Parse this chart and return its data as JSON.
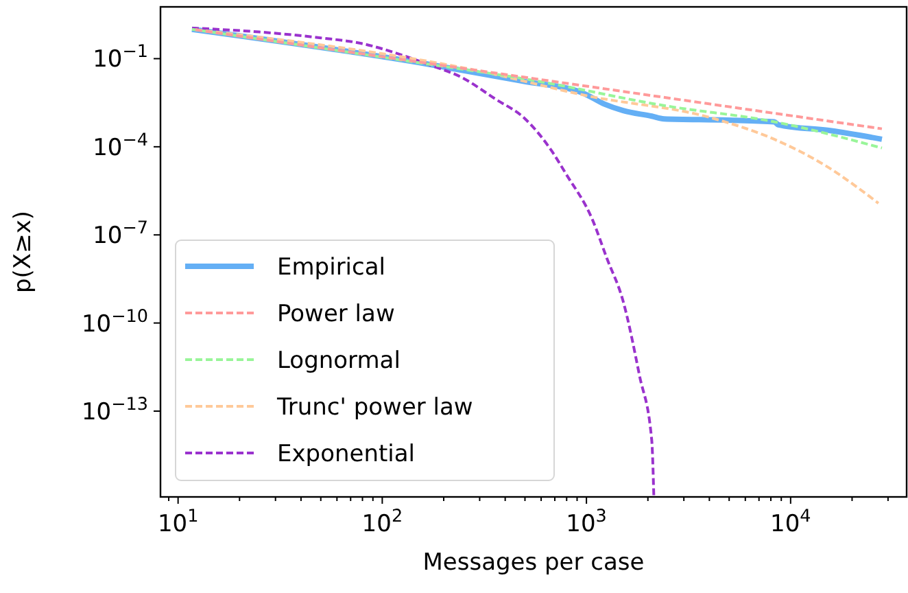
{
  "chart_data": {
    "type": "line",
    "xlabel": "Messages per case",
    "ylabel": "p(X≥x)",
    "log": "xy",
    "legend": "bottom left",
    "xlim": [
      8.2,
      37000
    ],
    "ylim": [
      1.2e-16,
      5.8
    ],
    "xticks": [
      {
        "value": 9,
        "label": null
      },
      {
        "value": 10,
        "label": "10$^{1}$"
      },
      {
        "value": 20,
        "label": null
      },
      {
        "value": 30,
        "label": null
      },
      {
        "value": 40,
        "label": null
      },
      {
        "value": 50,
        "label": null
      },
      {
        "value": 60,
        "label": null
      },
      {
        "value": 70,
        "label": null
      },
      {
        "value": 80,
        "label": null
      },
      {
        "value": 90,
        "label": null
      },
      {
        "value": 100,
        "label": "10$^{2}$"
      },
      {
        "value": 200,
        "label": null
      },
      {
        "value": 300,
        "label": null
      },
      {
        "value": 400,
        "label": null
      },
      {
        "value": 500,
        "label": null
      },
      {
        "value": 600,
        "label": null
      },
      {
        "value": 700,
        "label": null
      },
      {
        "value": 800,
        "label": null
      },
      {
        "value": 900,
        "label": null
      },
      {
        "value": 1000,
        "label": "10$^{3}$"
      },
      {
        "value": 2000,
        "label": null
      },
      {
        "value": 3000,
        "label": null
      },
      {
        "value": 4000,
        "label": null
      },
      {
        "value": 5000,
        "label": null
      },
      {
        "value": 6000,
        "label": null
      },
      {
        "value": 7000,
        "label": null
      },
      {
        "value": 8000,
        "label": null
      },
      {
        "value": 9000,
        "label": null
      },
      {
        "value": 10000,
        "label": "10$^{4}$"
      },
      {
        "value": 20000,
        "label": null
      },
      {
        "value": 30000,
        "label": null
      }
    ],
    "yticks": [
      {
        "value": 1e-13,
        "label": "10$^{−13}$"
      },
      {
        "value": 1e-10,
        "label": "10$^{−10}$"
      },
      {
        "value": 1e-07,
        "label": "10$^{−7}$"
      },
      {
        "value": 0.0001,
        "label": "10$^{−4}$"
      },
      {
        "value": 0.1,
        "label": "10$^{−1}$"
      }
    ],
    "series": [
      {
        "name": "Empirical",
        "color": "#64aff5",
        "line_style": "solid",
        "x": [
          11.7,
          166,
          490,
          955,
          1230,
          1514,
          2089,
          2399,
          4898,
          8318,
          8710,
          15849,
          28000
        ],
        "values": [
          1,
          0.066,
          0.017,
          0.0069,
          0.0028,
          0.0017,
          0.0011,
          0.00089,
          0.00081,
          0.00071,
          0.00056,
          0.00035,
          0.00018
        ]
      },
      {
        "name": "Power law",
        "color": "#ff9a9a",
        "line_style": "dashed",
        "x": [
          11.7,
          28000
        ],
        "values": [
          1,
          0.00041
        ]
      },
      {
        "name": "Lognormal",
        "color": "#99f599",
        "line_style": "dashed",
        "x": [
          11.7,
          166,
          490,
          2512,
          8318,
          28000
        ],
        "values": [
          1,
          0.066,
          0.021,
          0.0024,
          0.00071,
          9.1e-05
        ]
      },
      {
        "name": "Trunc' power law",
        "color": "#ffc999",
        "line_style": "dashed",
        "x": [
          11.7,
          316,
          1000,
          4266,
          8318,
          14791,
          26915
        ],
        "values": [
          1,
          0.035,
          0.0055,
          0.00089,
          0.00018,
          2.3e-05,
          1.2e-06
        ]
      },
      {
        "name": "Exponential",
        "color": "#9a32cd",
        "line_style": "dashed",
        "x": [
          11.7,
          25,
          50,
          79,
          126,
          166,
          251,
          355,
          501,
          676,
          794,
          1072,
          1259,
          1514,
          1820,
          2089,
          2138
        ],
        "values": [
          1.1,
          0.81,
          0.51,
          0.33,
          0.13,
          0.066,
          0.021,
          0.0044,
          0.00089,
          7.2e-05,
          1.2e-05,
          3.2e-07,
          1.6e-08,
          5.4e-10,
          1.6e-12,
          1e-14,
          1.3e-16
        ]
      }
    ]
  }
}
